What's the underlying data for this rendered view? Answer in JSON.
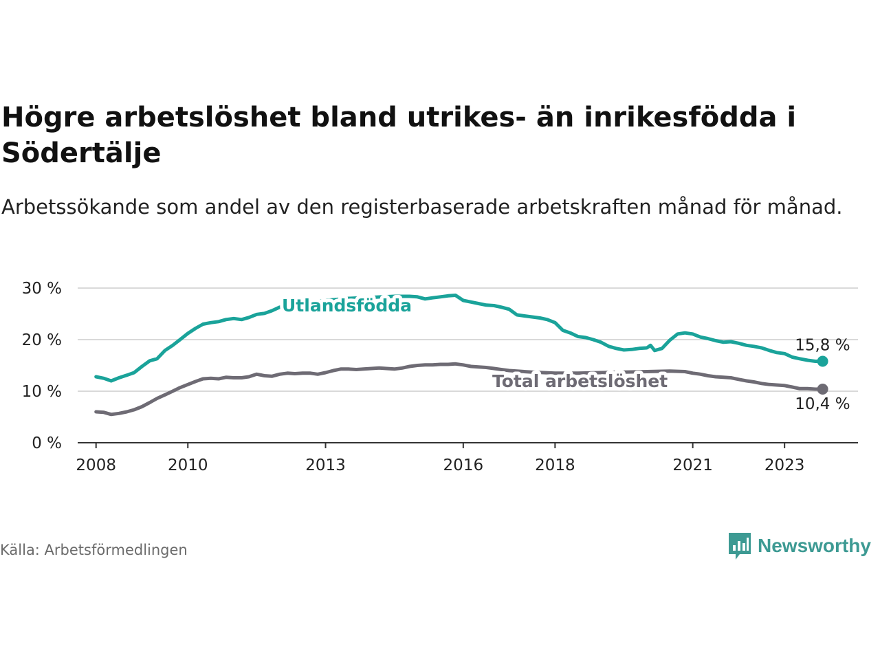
{
  "title": "Högre arbetslöshet bland utrikes- än inrikesfödda i Södertälje",
  "subtitle": "Arbetssökande som andel av den registerbaserade arbetskraften månad för månad.",
  "source": "Källa: Arbetsförmedlingen",
  "brand": {
    "name": "Newsworthy",
    "icon": "newsworthy-logo-icon"
  },
  "colors": {
    "foreign": "#1aa39a",
    "total": "#6e6b74",
    "grid": "#d9d9d9",
    "axis": "#333333"
  },
  "chart_data": {
    "type": "line",
    "title": "Högre arbetslöshet bland utrikes- än inrikesfödda i Södertälje",
    "xlabel": "",
    "ylabel": "",
    "x_range": [
      2007.6,
      2024.6
    ],
    "ylim": [
      0,
      30
    ],
    "y_ticks": [
      {
        "value": 0,
        "label": "0 %"
      },
      {
        "value": 10,
        "label": "10 %"
      },
      {
        "value": 20,
        "label": "20 %"
      },
      {
        "value": 30,
        "label": "30 %"
      }
    ],
    "x_ticks": [
      {
        "value": 2008,
        "label": "2008"
      },
      {
        "value": 2010,
        "label": "2010"
      },
      {
        "value": 2013,
        "label": "2013"
      },
      {
        "value": 2016,
        "label": "2016"
      },
      {
        "value": 2018,
        "label": "2018"
      },
      {
        "value": 2021,
        "label": "2021"
      },
      {
        "value": 2023,
        "label": "2023"
      }
    ],
    "series": [
      {
        "name": "Utlandsfödda",
        "end_label": "15,8 %",
        "points": [
          [
            2008.0,
            12.8
          ],
          [
            2008.17,
            12.5
          ],
          [
            2008.33,
            12.0
          ],
          [
            2008.5,
            12.6
          ],
          [
            2008.67,
            13.1
          ],
          [
            2008.83,
            13.6
          ],
          [
            2009.0,
            14.8
          ],
          [
            2009.17,
            15.9
          ],
          [
            2009.33,
            16.3
          ],
          [
            2009.5,
            17.9
          ],
          [
            2009.67,
            18.9
          ],
          [
            2009.83,
            20.0
          ],
          [
            2010.0,
            21.2
          ],
          [
            2010.17,
            22.2
          ],
          [
            2010.33,
            23.0
          ],
          [
            2010.5,
            23.3
          ],
          [
            2010.67,
            23.5
          ],
          [
            2010.83,
            23.9
          ],
          [
            2011.0,
            24.1
          ],
          [
            2011.17,
            23.9
          ],
          [
            2011.33,
            24.3
          ],
          [
            2011.5,
            24.9
          ],
          [
            2011.67,
            25.1
          ],
          [
            2011.83,
            25.6
          ],
          [
            2012.0,
            26.3
          ],
          [
            2012.5,
            27.0
          ],
          [
            2013.0,
            27.6
          ],
          [
            2013.5,
            28.0
          ],
          [
            2014.0,
            28.2
          ],
          [
            2014.5,
            28.4
          ],
          [
            2014.83,
            28.4
          ],
          [
            2015.0,
            28.3
          ],
          [
            2015.17,
            27.9
          ],
          [
            2015.33,
            28.1
          ],
          [
            2015.5,
            28.3
          ],
          [
            2015.67,
            28.5
          ],
          [
            2015.83,
            28.6
          ],
          [
            2016.0,
            27.6
          ],
          [
            2016.17,
            27.3
          ],
          [
            2016.33,
            27.0
          ],
          [
            2016.5,
            26.7
          ],
          [
            2016.67,
            26.6
          ],
          [
            2016.83,
            26.3
          ],
          [
            2017.0,
            25.9
          ],
          [
            2017.17,
            24.8
          ],
          [
            2017.33,
            24.6
          ],
          [
            2017.5,
            24.4
          ],
          [
            2017.67,
            24.2
          ],
          [
            2017.83,
            23.9
          ],
          [
            2018.0,
            23.3
          ],
          [
            2018.17,
            21.8
          ],
          [
            2018.33,
            21.3
          ],
          [
            2018.5,
            20.6
          ],
          [
            2018.67,
            20.4
          ],
          [
            2018.83,
            20.0
          ],
          [
            2019.0,
            19.5
          ],
          [
            2019.17,
            18.7
          ],
          [
            2019.33,
            18.3
          ],
          [
            2019.5,
            18.0
          ],
          [
            2019.67,
            18.1
          ],
          [
            2019.83,
            18.3
          ],
          [
            2020.0,
            18.4
          ],
          [
            2020.08,
            18.9
          ],
          [
            2020.17,
            17.9
          ],
          [
            2020.33,
            18.3
          ],
          [
            2020.5,
            19.9
          ],
          [
            2020.67,
            21.1
          ],
          [
            2020.83,
            21.3
          ],
          [
            2021.0,
            21.1
          ],
          [
            2021.17,
            20.5
          ],
          [
            2021.33,
            20.2
          ],
          [
            2021.5,
            19.8
          ],
          [
            2021.67,
            19.5
          ],
          [
            2021.83,
            19.6
          ],
          [
            2022.0,
            19.3
          ],
          [
            2022.17,
            18.9
          ],
          [
            2022.33,
            18.7
          ],
          [
            2022.5,
            18.4
          ],
          [
            2022.67,
            17.9
          ],
          [
            2022.83,
            17.5
          ],
          [
            2023.0,
            17.3
          ],
          [
            2023.17,
            16.6
          ],
          [
            2023.33,
            16.3
          ],
          [
            2023.5,
            16.0
          ],
          [
            2023.67,
            15.8
          ],
          [
            2023.83,
            15.8
          ]
        ]
      },
      {
        "name": "Total arbetslöshet",
        "end_label": "10,4 %",
        "points": [
          [
            2008.0,
            6.0
          ],
          [
            2008.17,
            5.9
          ],
          [
            2008.33,
            5.5
          ],
          [
            2008.5,
            5.7
          ],
          [
            2008.67,
            6.0
          ],
          [
            2008.83,
            6.4
          ],
          [
            2009.0,
            7.0
          ],
          [
            2009.17,
            7.8
          ],
          [
            2009.33,
            8.6
          ],
          [
            2009.5,
            9.3
          ],
          [
            2009.67,
            10.0
          ],
          [
            2009.83,
            10.7
          ],
          [
            2010.0,
            11.3
          ],
          [
            2010.17,
            11.9
          ],
          [
            2010.33,
            12.4
          ],
          [
            2010.5,
            12.5
          ],
          [
            2010.67,
            12.4
          ],
          [
            2010.83,
            12.7
          ],
          [
            2011.0,
            12.6
          ],
          [
            2011.17,
            12.6
          ],
          [
            2011.33,
            12.8
          ],
          [
            2011.5,
            13.3
          ],
          [
            2011.67,
            13.0
          ],
          [
            2011.83,
            12.9
          ],
          [
            2012.0,
            13.3
          ],
          [
            2012.17,
            13.5
          ],
          [
            2012.33,
            13.4
          ],
          [
            2012.5,
            13.5
          ],
          [
            2012.67,
            13.5
          ],
          [
            2012.83,
            13.3
          ],
          [
            2013.0,
            13.6
          ],
          [
            2013.17,
            14.0
          ],
          [
            2013.33,
            14.3
          ],
          [
            2013.5,
            14.3
          ],
          [
            2013.67,
            14.2
          ],
          [
            2013.83,
            14.3
          ],
          [
            2014.0,
            14.4
          ],
          [
            2014.17,
            14.5
          ],
          [
            2014.33,
            14.4
          ],
          [
            2014.5,
            14.3
          ],
          [
            2014.67,
            14.5
          ],
          [
            2014.83,
            14.8
          ],
          [
            2015.0,
            15.0
          ],
          [
            2015.17,
            15.1
          ],
          [
            2015.33,
            15.1
          ],
          [
            2015.5,
            15.2
          ],
          [
            2015.67,
            15.2
          ],
          [
            2015.83,
            15.3
          ],
          [
            2016.0,
            15.1
          ],
          [
            2016.17,
            14.8
          ],
          [
            2016.33,
            14.7
          ],
          [
            2016.5,
            14.6
          ],
          [
            2016.67,
            14.4
          ],
          [
            2016.83,
            14.2
          ],
          [
            2017.0,
            14.0
          ],
          [
            2017.5,
            13.7
          ],
          [
            2018.0,
            13.5
          ],
          [
            2018.5,
            13.5
          ],
          [
            2019.0,
            13.6
          ],
          [
            2019.5,
            13.7
          ],
          [
            2020.0,
            13.8
          ],
          [
            2020.5,
            13.9
          ],
          [
            2020.83,
            13.8
          ],
          [
            2021.0,
            13.5
          ],
          [
            2021.17,
            13.3
          ],
          [
            2021.33,
            13.0
          ],
          [
            2021.5,
            12.8
          ],
          [
            2021.67,
            12.7
          ],
          [
            2021.83,
            12.6
          ],
          [
            2022.0,
            12.3
          ],
          [
            2022.17,
            12.0
          ],
          [
            2022.33,
            11.8
          ],
          [
            2022.5,
            11.5
          ],
          [
            2022.67,
            11.3
          ],
          [
            2022.83,
            11.2
          ],
          [
            2023.0,
            11.1
          ],
          [
            2023.17,
            10.8
          ],
          [
            2023.33,
            10.5
          ],
          [
            2023.5,
            10.5
          ],
          [
            2023.67,
            10.4
          ],
          [
            2023.83,
            10.4
          ]
        ]
      }
    ]
  }
}
